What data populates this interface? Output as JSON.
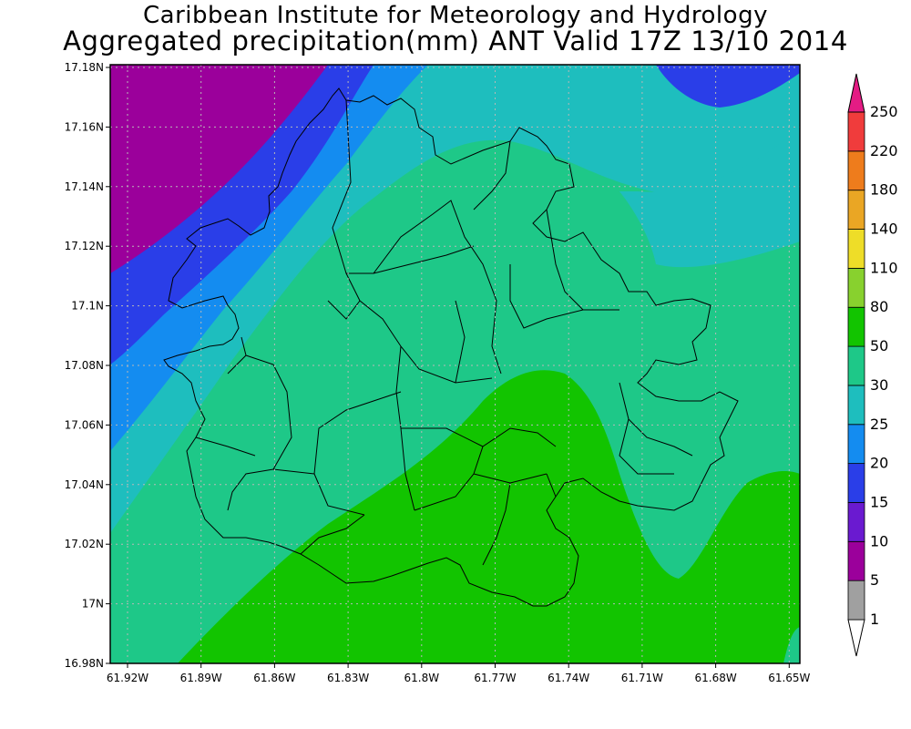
{
  "titles": {
    "line1": "Caribbean Institute for Meteorology and Hydrology",
    "line2": "Aggregated precipitation(mm) ANT Valid 17Z 13/10 2014"
  },
  "map": {
    "x_ticks": [
      "61.92W",
      "61.89W",
      "61.86W",
      "61.83W",
      "61.8W",
      "61.77W",
      "61.74W",
      "61.71W",
      "61.68W",
      "61.65W"
    ],
    "y_ticks": [
      "17.18N",
      "17.16N",
      "17.14N",
      "17.12N",
      "17.1N",
      "17.08N",
      "17.06N",
      "17.04N",
      "17.02N",
      "17N",
      "16.98N"
    ],
    "lon_range": [
      -61.92,
      -61.64
    ],
    "lat_range": [
      16.98,
      17.18
    ],
    "grid": true
  },
  "colorbar": {
    "levels": [
      "1",
      "5",
      "10",
      "15",
      "20",
      "25",
      "30",
      "50",
      "80",
      "110",
      "140",
      "180",
      "220",
      "250"
    ],
    "colors": {
      "1-5": "#a0a0a0",
      "5-10": "#9b009b",
      "10-15": "#6a1ad0",
      "15-20": "#2a3ee8",
      "20-25": "#148cf0",
      "25-30": "#1ebebe",
      "30-50": "#1ec888",
      "50-80": "#12c400",
      "80-110": "#88d12e",
      "110-140": "#eedd28",
      "140-180": "#eaa624",
      "180-220": "#ee7c1c",
      "220-250": "#f03c3c",
      "250+": "#e41c84"
    }
  }
}
